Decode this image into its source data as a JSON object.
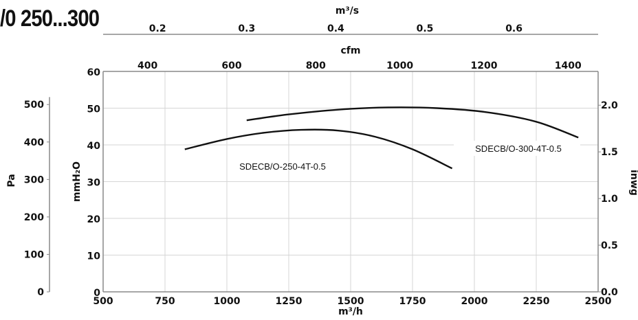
{
  "page_title": "/0 250...300",
  "chart_data": {
    "type": "line",
    "title": "/0 250...300",
    "x": {
      "label": "m³/h",
      "lim": [
        500,
        2500
      ],
      "ticks": [
        "500",
        "750",
        "1000",
        "1250",
        "1500",
        "1750",
        "2000",
        "2250",
        "2500"
      ],
      "tick_values": [
        500,
        750,
        1000,
        1250,
        1500,
        1750,
        2000,
        2250,
        2500
      ]
    },
    "y": {
      "label": "mmH₂O",
      "lim": [
        0,
        60
      ],
      "ticks": [
        "0",
        "10",
        "20",
        "30",
        "40",
        "50",
        "60"
      ],
      "tick_values": [
        0,
        10,
        20,
        30,
        40,
        50,
        60
      ]
    },
    "x_top_cfm": {
      "label": "cfm",
      "ticks": [
        "400",
        "600",
        "800",
        "1000",
        "1200",
        "1400"
      ],
      "tick_values": [
        400,
        600,
        800,
        1000,
        1200,
        1400
      ]
    },
    "x_top_m3s": {
      "label": "m³/s",
      "ticks": [
        "0.2",
        "0.3",
        "0.4",
        "0.5",
        "0.6"
      ],
      "tick_values": [
        0.2,
        0.3,
        0.4,
        0.5,
        0.6
      ]
    },
    "y_left_pa": {
      "label": "Pa",
      "ticks": [
        "0",
        "100",
        "200",
        "300",
        "400",
        "500"
      ],
      "tick_values": [
        0,
        100,
        200,
        300,
        400,
        500
      ]
    },
    "y_right_inwg": {
      "label": "inwg",
      "ticks": [
        "0.0",
        "0.5",
        "1.0",
        "1.5",
        "2.0"
      ],
      "tick_values": [
        0.0,
        0.5,
        1.0,
        1.5,
        2.0
      ]
    },
    "grid": true,
    "series": [
      {
        "name": "SDECB/O-250-4T-0.5",
        "x": [
          830,
          1000,
          1150,
          1300,
          1450,
          1600,
          1750,
          1910
        ],
        "y": [
          38.8,
          41.6,
          43.3,
          44.1,
          43.9,
          42.2,
          38.8,
          33.6
        ]
      },
      {
        "name": "SDECB/O-300-4T-0.5",
        "x": [
          1080,
          1250,
          1450,
          1650,
          1850,
          2050,
          2250,
          2420
        ],
        "y": [
          46.7,
          48.3,
          49.6,
          50.2,
          50.0,
          48.9,
          46.3,
          42.0
        ]
      }
    ],
    "annotations": [
      {
        "text": "SDECB/O-250-4T-0.5",
        "series": 0
      },
      {
        "text": "SDECB/O-300-4T-0.5",
        "series": 1
      }
    ]
  }
}
